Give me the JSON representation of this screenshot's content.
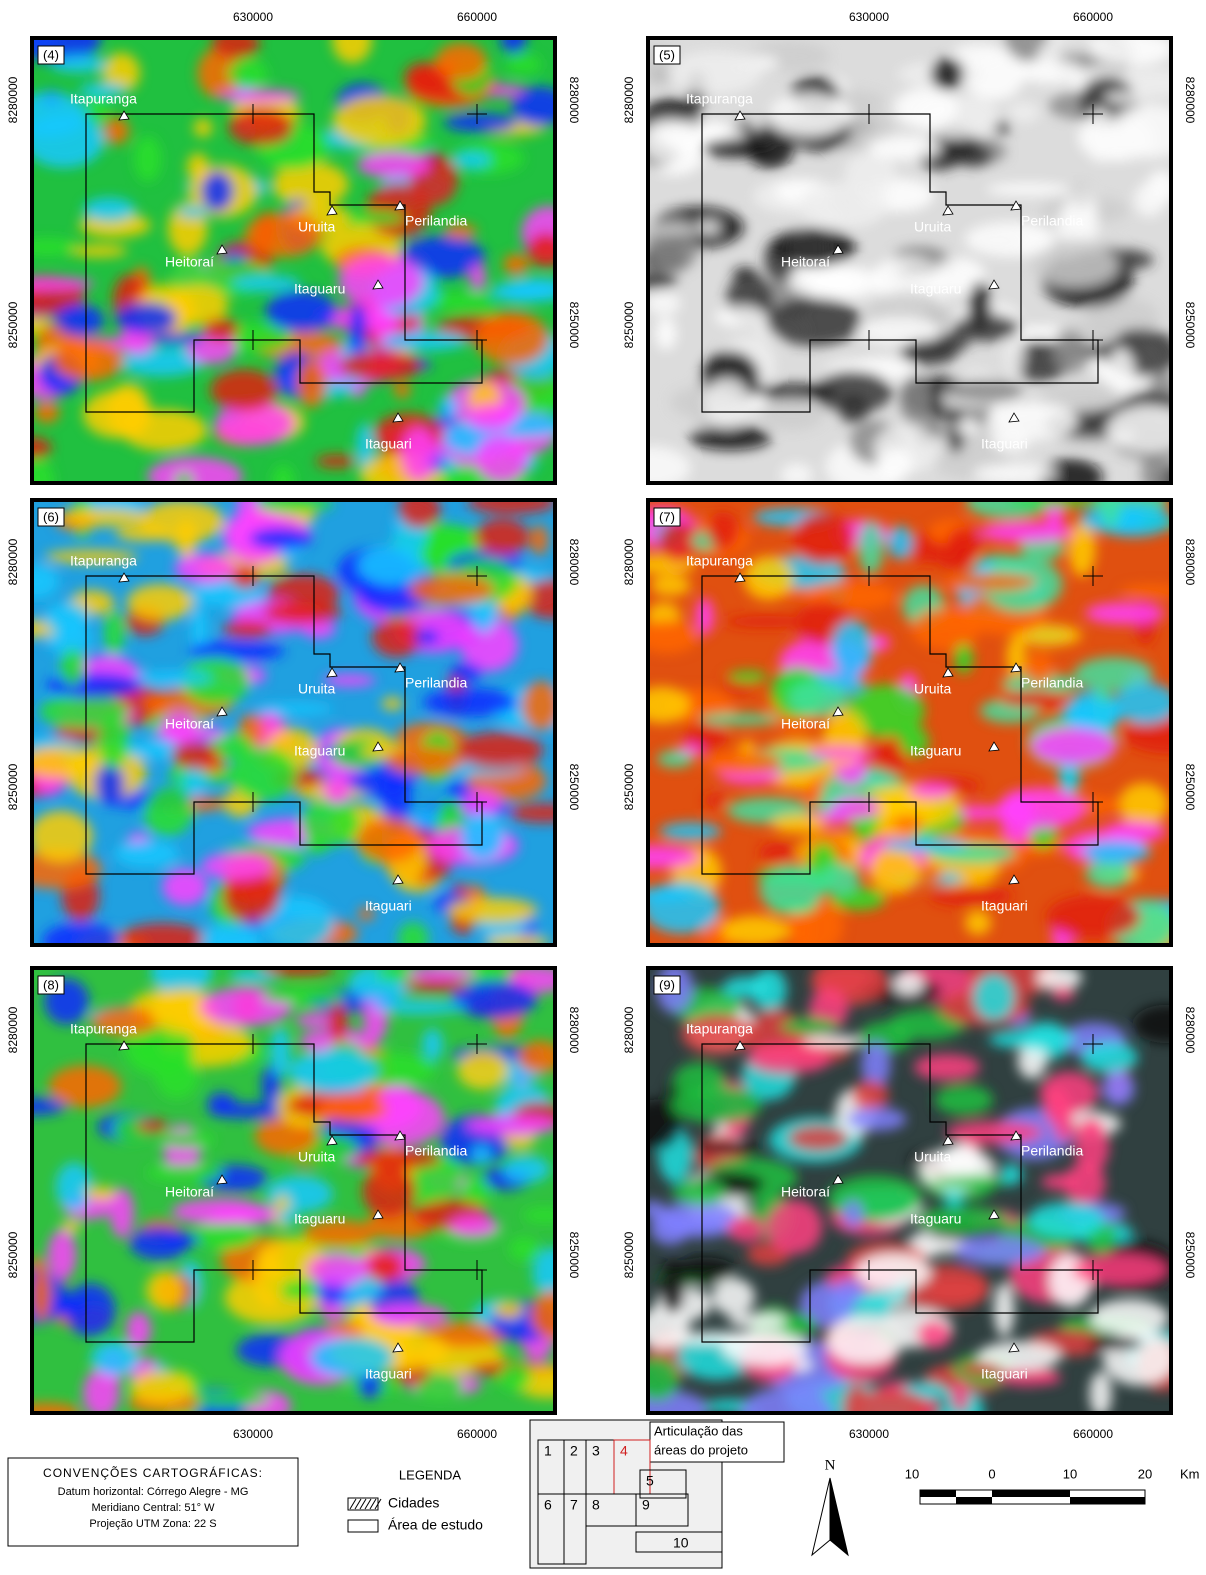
{
  "panels": [
    {
      "label": "(4)"
    },
    {
      "label": "(5)"
    },
    {
      "label": "(6)"
    },
    {
      "label": "(7)"
    },
    {
      "label": "(8)"
    },
    {
      "label": "(9)"
    }
  ],
  "cities": [
    "Itapuranga",
    "Uruita",
    "Perilandia",
    "Heitoraí",
    "Itaguaru",
    "Itaguari"
  ],
  "axes": {
    "x_ticks": [
      "630000",
      "660000"
    ],
    "y_ticks": [
      "8280000",
      "8250000"
    ]
  },
  "conventions": {
    "title": "CONVENÇÕES CARTOGRÁFICAS:",
    "lines": [
      "Datum horizontal: Córrego Alegre - MG",
      "Meridiano Central: 51° W",
      "Projeção UTM Zona: 22 S"
    ]
  },
  "legend": {
    "title": "LEGENDA",
    "items": [
      "Cidades",
      "Área de estudo"
    ]
  },
  "index": {
    "title_lines": [
      "Articulação das",
      "áreas do projeto"
    ],
    "cells": [
      "1",
      "2",
      "3",
      "4",
      "5",
      "6",
      "7",
      "8",
      "9",
      "10"
    ]
  },
  "north": "N",
  "scale": {
    "ticks": [
      "10",
      "0",
      "10",
      "20"
    ],
    "unit": "Km"
  }
}
